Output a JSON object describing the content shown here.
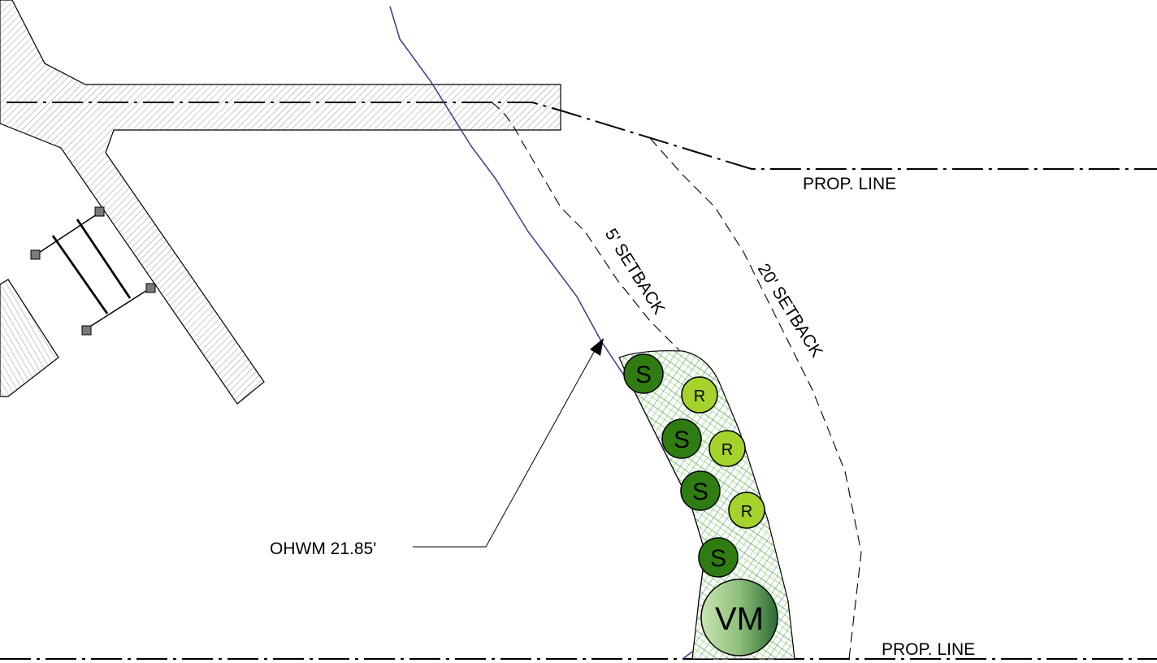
{
  "labels": {
    "prop_line_top": "PROP. LINE",
    "prop_line_bottom": "PROP. LINE",
    "setback_5": "5' SETBACK",
    "setback_20": "20' SETBACK",
    "ohwm": "OHWM 21.85'"
  },
  "plants": {
    "shrub_symbol": "S",
    "rush_symbol": "R",
    "tree_symbol": "VM"
  },
  "colors": {
    "line": "#000000",
    "ohwm_line": "#3a3a8c",
    "dock_hatch": "#9a9a9a",
    "shrub_fill": "#2f7d12",
    "rush_fill": "#a6d22c",
    "tree_fill_light": "#b9dca0",
    "tree_fill_dark": "#2f6e3a",
    "planting_hatch_green": "#4cae2e",
    "planting_hatch_blue": "#3c7c9c"
  }
}
